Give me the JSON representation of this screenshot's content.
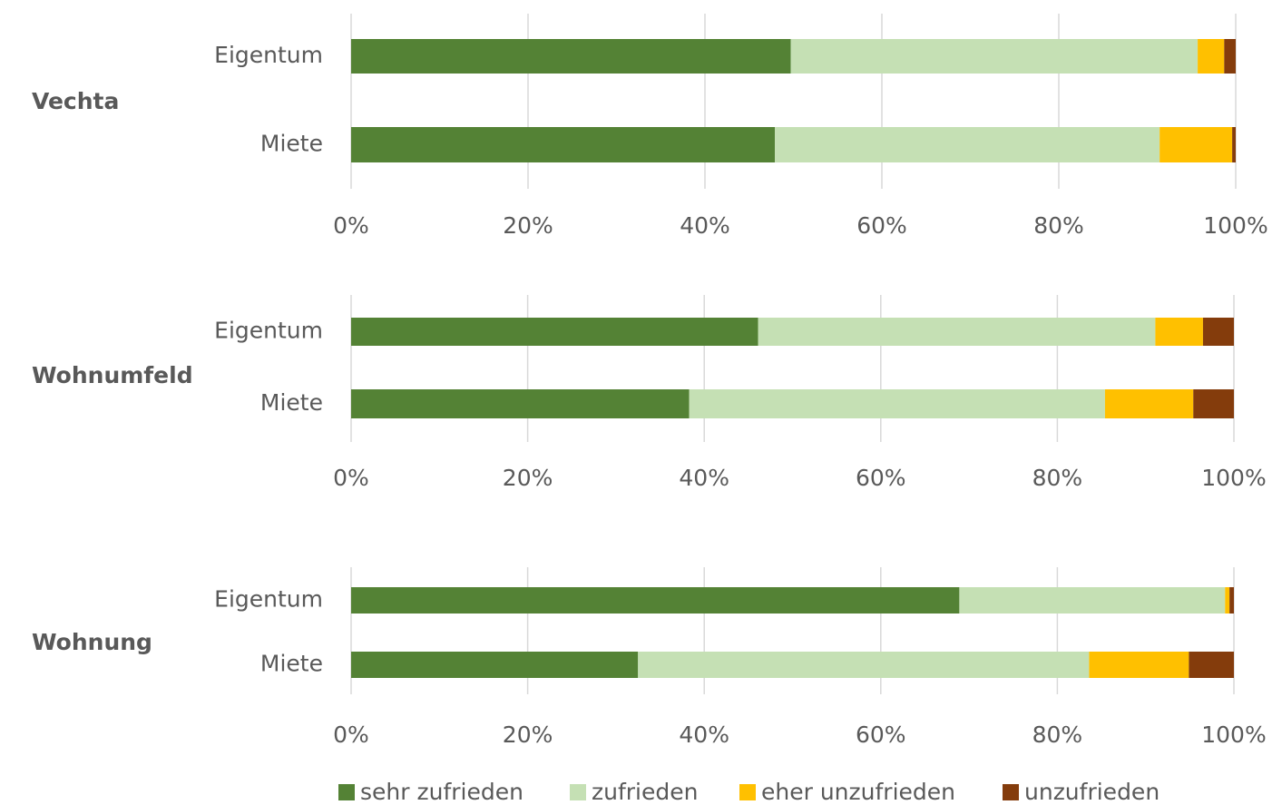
{
  "chart_data": [
    {
      "type": "stacked-bar-horizontal",
      "title": "Vechta",
      "categories": [
        "Eigentum",
        "Miete"
      ],
      "series": [
        {
          "name": "sehr zufrieden",
          "color": "#548235",
          "values": [
            49.7,
            47.9
          ]
        },
        {
          "name": "zufrieden",
          "color": "#c5e0b4",
          "values": [
            46.0,
            43.5
          ]
        },
        {
          "name": "eher unzufrieden",
          "color": "#ffc000",
          "values": [
            3.0,
            8.2
          ]
        },
        {
          "name": "unzufrieden",
          "color": "#843c0c",
          "values": [
            1.3,
            0.4
          ]
        }
      ],
      "xlim": [
        0,
        100
      ],
      "xticks": [
        {
          "value": 0,
          "label": "0%"
        },
        {
          "value": 20,
          "label": "20%"
        },
        {
          "value": 40,
          "label": "40%"
        },
        {
          "value": 60,
          "label": "60%"
        },
        {
          "value": 80,
          "label": "80%"
        },
        {
          "value": 100,
          "label": "100%"
        }
      ],
      "grid": true
    },
    {
      "type": "stacked-bar-horizontal",
      "title": "Wohnumfeld",
      "categories": [
        "Eigentum",
        "Miete"
      ],
      "series": [
        {
          "name": "sehr zufrieden",
          "color": "#548235",
          "values": [
            46.1,
            38.3
          ]
        },
        {
          "name": "zufrieden",
          "color": "#c5e0b4",
          "values": [
            45.0,
            47.1
          ]
        },
        {
          "name": "eher unzufrieden",
          "color": "#ffc000",
          "values": [
            5.4,
            10.0
          ]
        },
        {
          "name": "unzufrieden",
          "color": "#843c0c",
          "values": [
            3.5,
            4.6
          ]
        }
      ],
      "xlim": [
        0,
        100
      ],
      "xticks": [
        {
          "value": 0,
          "label": "0%"
        },
        {
          "value": 20,
          "label": "20%"
        },
        {
          "value": 40,
          "label": "40%"
        },
        {
          "value": 60,
          "label": "60%"
        },
        {
          "value": 80,
          "label": "80%"
        },
        {
          "value": 100,
          "label": "100%"
        }
      ],
      "grid": true
    },
    {
      "type": "stacked-bar-horizontal",
      "title": "Wohnung",
      "categories": [
        "Eigentum",
        "Miete"
      ],
      "series": [
        {
          "name": "sehr zufrieden",
          "color": "#548235",
          "values": [
            68.9,
            32.5
          ]
        },
        {
          "name": "zufrieden",
          "color": "#c5e0b4",
          "values": [
            30.1,
            51.1
          ]
        },
        {
          "name": "eher unzufrieden",
          "color": "#ffc000",
          "values": [
            0.5,
            11.3
          ]
        },
        {
          "name": "unzufrieden",
          "color": "#843c0c",
          "values": [
            0.5,
            5.1
          ]
        }
      ],
      "xlim": [
        0,
        100
      ],
      "xticks": [
        {
          "value": 0,
          "label": "0%"
        },
        {
          "value": 20,
          "label": "20%"
        },
        {
          "value": 40,
          "label": "40%"
        },
        {
          "value": 60,
          "label": "60%"
        },
        {
          "value": 80,
          "label": "80%"
        },
        {
          "value": 100,
          "label": "100%"
        }
      ],
      "grid": true
    }
  ]
}
